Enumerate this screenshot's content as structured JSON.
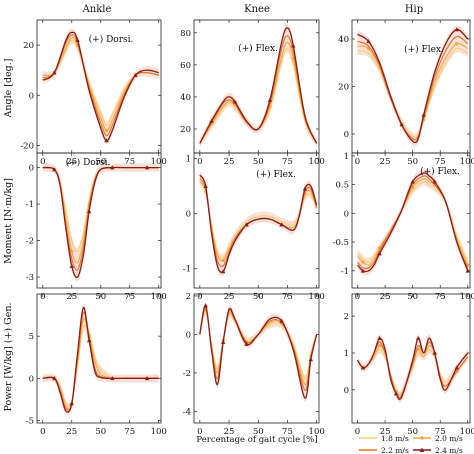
{
  "figure": {
    "columns": [
      "Ankle",
      "Knee",
      "Hip"
    ],
    "row_labels": [
      "Angle [deg.]",
      "Moment [N·m/kg]",
      "Power [W/kg] (+) Gen."
    ],
    "xlabel": "Percentage of gait cycle [%]"
  },
  "colors": {
    "speeds": [
      "#f7d070",
      "#f3a640",
      "#e2702a",
      "#8b1c1c"
    ],
    "band": "#f2b8a0"
  },
  "legend": {
    "entries": [
      "1.8 m/s",
      "2.0 m/s",
      "2.2 m/s",
      "2.4 m/s"
    ],
    "placement": "bottom-right"
  },
  "chart_data": [
    {
      "type": "line",
      "panel": "ankle-angle",
      "annotation": "(+) Dorsi.",
      "x": [
        0,
        10,
        20,
        25,
        30,
        40,
        50,
        55,
        60,
        70,
        80,
        90,
        100
      ],
      "xlim": [
        -5,
        102
      ],
      "ylim": [
        -23,
        30
      ],
      "yticks": [
        -20,
        0,
        20
      ],
      "xticks": [
        0,
        25,
        50,
        75,
        100
      ],
      "series": [
        {
          "name": "1.8 m/s",
          "values": [
            8,
            9,
            18,
            22,
            19,
            5,
            -7,
            -12,
            -8,
            2,
            8,
            9,
            8
          ]
        },
        {
          "name": "2.0 m/s",
          "values": [
            8,
            9,
            19,
            23,
            20,
            4,
            -9,
            -14,
            -10,
            1,
            8,
            9,
            8
          ]
        },
        {
          "name": "2.2 m/s",
          "values": [
            7,
            9,
            21,
            24,
            21,
            3,
            -11,
            -16,
            -12,
            0,
            8,
            9,
            8
          ]
        },
        {
          "name": "2.4 m/s",
          "values": [
            6,
            9,
            22,
            25,
            22,
            2,
            -13,
            -18,
            -14,
            -1,
            8,
            10,
            9
          ]
        }
      ]
    },
    {
      "type": "line",
      "panel": "knee-angle",
      "annotation": "(+) Flex.",
      "x": [
        0,
        10,
        20,
        25,
        30,
        40,
        50,
        60,
        70,
        75,
        80,
        90,
        100
      ],
      "xlim": [
        -5,
        102
      ],
      "ylim": [
        5,
        88
      ],
      "yticks": [
        20,
        40,
        60,
        80
      ],
      "xticks": [
        0,
        25,
        50,
        75,
        100
      ],
      "series": [
        {
          "name": "1.8 m/s",
          "values": [
            11,
            22,
            33,
            36,
            34,
            24,
            20,
            32,
            62,
            70,
            60,
            25,
            11
          ]
        },
        {
          "name": "2.0 m/s",
          "values": [
            11,
            23,
            34,
            37,
            35,
            24,
            20,
            34,
            65,
            74,
            64,
            26,
            11
          ]
        },
        {
          "name": "2.2 m/s",
          "values": [
            11,
            24,
            36,
            38,
            36,
            24,
            20,
            36,
            70,
            78,
            68,
            27,
            11
          ]
        },
        {
          "name": "2.4 m/s",
          "values": [
            11,
            25,
            37,
            40,
            37,
            25,
            20,
            38,
            74,
            83,
            72,
            28,
            11
          ]
        }
      ]
    },
    {
      "type": "line",
      "panel": "hip-angle",
      "annotation": "(+) Flex.",
      "x": [
        0,
        10,
        20,
        30,
        40,
        50,
        55,
        60,
        70,
        80,
        90,
        100
      ],
      "xlim": [
        -5,
        102
      ],
      "ylim": [
        -8,
        48
      ],
      "yticks": [
        0,
        20,
        40
      ],
      "xticks": [
        0,
        25,
        50,
        75,
        100
      ],
      "series": [
        {
          "name": "1.8 m/s",
          "values": [
            35,
            34,
            27,
            15,
            5,
            -1,
            0,
            6,
            20,
            30,
            36,
            34
          ]
        },
        {
          "name": "2.0 m/s",
          "values": [
            37,
            36,
            28,
            15,
            4,
            -2,
            -1,
            6,
            22,
            32,
            38,
            36
          ]
        },
        {
          "name": "2.2 m/s",
          "values": [
            39,
            37,
            29,
            15,
            4,
            -2,
            -1,
            7,
            24,
            35,
            41,
            38
          ]
        },
        {
          "name": "2.4 m/s",
          "values": [
            42,
            39,
            30,
            16,
            4,
            -3,
            -2,
            8,
            26,
            38,
            44,
            40
          ]
        }
      ]
    },
    {
      "type": "line",
      "panel": "ankle-moment",
      "annotation": "(+) Dorsi.",
      "x": [
        0,
        10,
        15,
        20,
        25,
        30,
        35,
        40,
        45,
        50,
        60,
        70,
        80,
        90,
        100
      ],
      "xlim": [
        -5,
        102
      ],
      "ylim": [
        -3.3,
        0.4
      ],
      "yticks": [
        -3,
        -2,
        -1,
        0
      ],
      "xticks": [
        0,
        25,
        50,
        75,
        100
      ],
      "series": [
        {
          "name": "1.8 m/s",
          "values": [
            0,
            -0.05,
            -0.4,
            -1.2,
            -2.0,
            -2.3,
            -1.8,
            -0.9,
            -0.3,
            -0.05,
            0,
            0,
            0,
            0,
            0
          ]
        },
        {
          "name": "2.0 m/s",
          "values": [
            0,
            -0.05,
            -0.45,
            -1.4,
            -2.3,
            -2.6,
            -2.0,
            -1.0,
            -0.3,
            -0.05,
            0,
            0,
            0,
            0,
            0
          ]
        },
        {
          "name": "2.2 m/s",
          "values": [
            0,
            -0.05,
            -0.5,
            -1.6,
            -2.5,
            -2.8,
            -2.2,
            -1.1,
            -0.35,
            -0.05,
            0,
            0,
            0,
            0,
            0
          ]
        },
        {
          "name": "2.4 m/s",
          "values": [
            0,
            -0.05,
            -0.5,
            -1.7,
            -2.7,
            -3.0,
            -2.4,
            -1.2,
            -0.4,
            -0.05,
            0,
            0,
            0,
            0,
            0
          ]
        }
      ]
    },
    {
      "type": "line",
      "panel": "knee-moment",
      "annotation": "(+) Flex.",
      "x": [
        0,
        5,
        10,
        15,
        20,
        25,
        30,
        40,
        50,
        60,
        70,
        80,
        85,
        90,
        95,
        100
      ],
      "xlim": [
        -5,
        102
      ],
      "ylim": [
        -1.35,
        1.1
      ],
      "yticks": [
        -1,
        0,
        1
      ],
      "xticks": [
        0,
        25,
        50,
        75,
        100
      ],
      "series": [
        {
          "name": "1.8 m/s",
          "values": [
            0.6,
            0.4,
            -0.2,
            -0.7,
            -0.8,
            -0.6,
            -0.4,
            -0.15,
            -0.05,
            -0.05,
            -0.15,
            -0.2,
            0,
            0.3,
            0.35,
            0.1
          ]
        },
        {
          "name": "2.0 m/s",
          "values": [
            0.6,
            0.4,
            -0.25,
            -0.75,
            -0.85,
            -0.65,
            -0.45,
            -0.2,
            -0.1,
            -0.1,
            -0.2,
            -0.25,
            -0.05,
            0.35,
            0.4,
            0.1
          ]
        },
        {
          "name": "2.2 m/s",
          "values": [
            0.65,
            0.45,
            -0.3,
            -0.85,
            -0.95,
            -0.7,
            -0.45,
            -0.2,
            -0.1,
            -0.1,
            -0.2,
            -0.3,
            -0.05,
            0.4,
            0.45,
            0.1
          ]
        },
        {
          "name": "2.4 m/s",
          "values": [
            0.7,
            0.5,
            -0.35,
            -0.95,
            -1.05,
            -0.75,
            -0.5,
            -0.2,
            -0.1,
            -0.1,
            -0.2,
            -0.3,
            -0.05,
            0.45,
            0.5,
            0.15
          ]
        }
      ]
    },
    {
      "type": "line",
      "panel": "hip-moment",
      "annotation": "(+) Flex.",
      "x": [
        0,
        5,
        10,
        15,
        20,
        30,
        40,
        50,
        60,
        65,
        70,
        80,
        90,
        100
      ],
      "xlim": [
        -5,
        102
      ],
      "ylim": [
        -1.3,
        1.05
      ],
      "yticks": [
        -1,
        -0.5,
        0,
        0.5,
        1
      ],
      "xticks": [
        0,
        25,
        50,
        75,
        100
      ],
      "series": [
        {
          "name": "1.8 m/s",
          "values": [
            -0.7,
            -0.8,
            -0.85,
            -0.75,
            -0.6,
            -0.3,
            0.05,
            0.4,
            0.55,
            0.5,
            0.45,
            0.2,
            -0.4,
            -0.85
          ]
        },
        {
          "name": "2.0 m/s",
          "values": [
            -0.75,
            -0.85,
            -0.9,
            -0.8,
            -0.6,
            -0.3,
            0.05,
            0.45,
            0.6,
            0.55,
            0.5,
            0.2,
            -0.45,
            -0.9
          ]
        },
        {
          "name": "2.2 m/s",
          "values": [
            -0.85,
            -0.95,
            -0.95,
            -0.85,
            -0.65,
            -0.3,
            0.05,
            0.5,
            0.65,
            0.6,
            0.5,
            0.2,
            -0.5,
            -0.95
          ]
        },
        {
          "name": "2.4 m/s",
          "values": [
            -0.9,
            -1.0,
            -1.0,
            -0.9,
            -0.7,
            -0.35,
            0.05,
            0.55,
            0.7,
            0.65,
            0.55,
            0.2,
            -0.5,
            -1.0
          ]
        }
      ]
    },
    {
      "type": "line",
      "panel": "ankle-power",
      "annotation": "",
      "x": [
        0,
        10,
        15,
        20,
        25,
        30,
        35,
        40,
        45,
        50,
        60,
        70,
        80,
        90,
        100
      ],
      "xlim": [
        -5,
        102
      ],
      "ylim": [
        -5.3,
        10
      ],
      "yticks": [
        -5,
        0,
        5
      ],
      "xticks": [
        0,
        25,
        50,
        75,
        100
      ],
      "series": [
        {
          "name": "1.8 m/s",
          "values": [
            0,
            0,
            -1.0,
            -3.0,
            -2.8,
            1.5,
            6.0,
            5.5,
            2.5,
            1.0,
            0,
            0,
            0,
            0,
            0
          ]
        },
        {
          "name": "2.0 m/s",
          "values": [
            0,
            0,
            -1.2,
            -3.3,
            -3.0,
            2.0,
            7.0,
            5.0,
            2.0,
            0.5,
            0,
            0,
            0,
            0,
            0
          ]
        },
        {
          "name": "2.2 m/s",
          "values": [
            0,
            0,
            -1.5,
            -3.6,
            -3.0,
            2.5,
            7.8,
            5.0,
            1.2,
            0.2,
            0,
            0,
            0,
            0,
            0
          ]
        },
        {
          "name": "2.4 m/s",
          "values": [
            0,
            0,
            -1.7,
            -3.9,
            -3.0,
            3.0,
            8.4,
            4.5,
            0.8,
            0.1,
            0,
            0,
            0,
            0,
            0
          ]
        }
      ]
    },
    {
      "type": "line",
      "panel": "knee-power",
      "annotation": "",
      "x": [
        0,
        5,
        10,
        15,
        20,
        25,
        30,
        40,
        50,
        60,
        70,
        80,
        90,
        95,
        100
      ],
      "xlim": [
        -5,
        102
      ],
      "ylim": [
        -4.6,
        2.1
      ],
      "yticks": [
        -4,
        -2,
        0,
        2
      ],
      "xticks": [
        0,
        25,
        50,
        75,
        100
      ],
      "series": [
        {
          "name": "1.8 m/s",
          "values": [
            0,
            1.2,
            -0.5,
            -1.8,
            -0.3,
            1.0,
            0.7,
            -0.3,
            0,
            0.5,
            0.5,
            -0.5,
            -2.3,
            -1.0,
            0
          ]
        },
        {
          "name": "2.0 m/s",
          "values": [
            0,
            1.3,
            -0.6,
            -2.0,
            -0.3,
            1.1,
            0.7,
            -0.4,
            0,
            0.6,
            0.6,
            -0.6,
            -2.6,
            -1.1,
            0
          ]
        },
        {
          "name": "2.2 m/s",
          "values": [
            0,
            1.4,
            -0.7,
            -2.3,
            -0.3,
            1.2,
            0.8,
            -0.4,
            0,
            0.7,
            0.6,
            -0.7,
            -2.9,
            -1.2,
            0
          ]
        },
        {
          "name": "2.4 m/s",
          "values": [
            0,
            1.5,
            -0.8,
            -2.6,
            -0.4,
            1.3,
            0.8,
            -0.5,
            0,
            0.8,
            0.7,
            -0.8,
            -3.3,
            -1.3,
            0
          ]
        }
      ]
    },
    {
      "type": "line",
      "panel": "hip-power",
      "annotation": "",
      "x": [
        0,
        5,
        10,
        15,
        20,
        25,
        30,
        35,
        40,
        50,
        55,
        60,
        65,
        70,
        75,
        80,
        90,
        100
      ],
      "xlim": [
        -5,
        102
      ],
      "ylim": [
        -0.9,
        2.6
      ],
      "yticks": [
        0,
        1,
        2
      ],
      "xticks": [
        0,
        25,
        50,
        75,
        100
      ],
      "series": [
        {
          "name": "1.8 m/s",
          "values": [
            0.8,
            0.6,
            0.7,
            0.9,
            1.1,
            0.9,
            0.4,
            0,
            -0.1,
            0.6,
            1.0,
            0.9,
            1.1,
            0.9,
            0.4,
            0.2,
            0.5,
            0.9
          ]
        },
        {
          "name": "2.0 m/s",
          "values": [
            0.8,
            0.6,
            0.7,
            0.9,
            1.2,
            1.0,
            0.4,
            -0.05,
            -0.1,
            0.7,
            1.1,
            0.9,
            1.2,
            1.0,
            0.4,
            0.1,
            0.5,
            0.9
          ]
        },
        {
          "name": "2.2 m/s",
          "values": [
            0.8,
            0.6,
            0.7,
            1.0,
            1.3,
            1.0,
            0.4,
            -0.1,
            -0.15,
            0.7,
            1.2,
            1.0,
            1.3,
            1.0,
            0.3,
            0.1,
            0.5,
            0.9
          ]
        },
        {
          "name": "2.4 m/s",
          "values": [
            0.8,
            0.6,
            0.7,
            1.0,
            1.4,
            1.1,
            0.3,
            -0.1,
            -0.2,
            0.8,
            1.4,
            1.0,
            1.4,
            1.0,
            0.3,
            0.0,
            0.6,
            1.0
          ]
        }
      ]
    }
  ]
}
